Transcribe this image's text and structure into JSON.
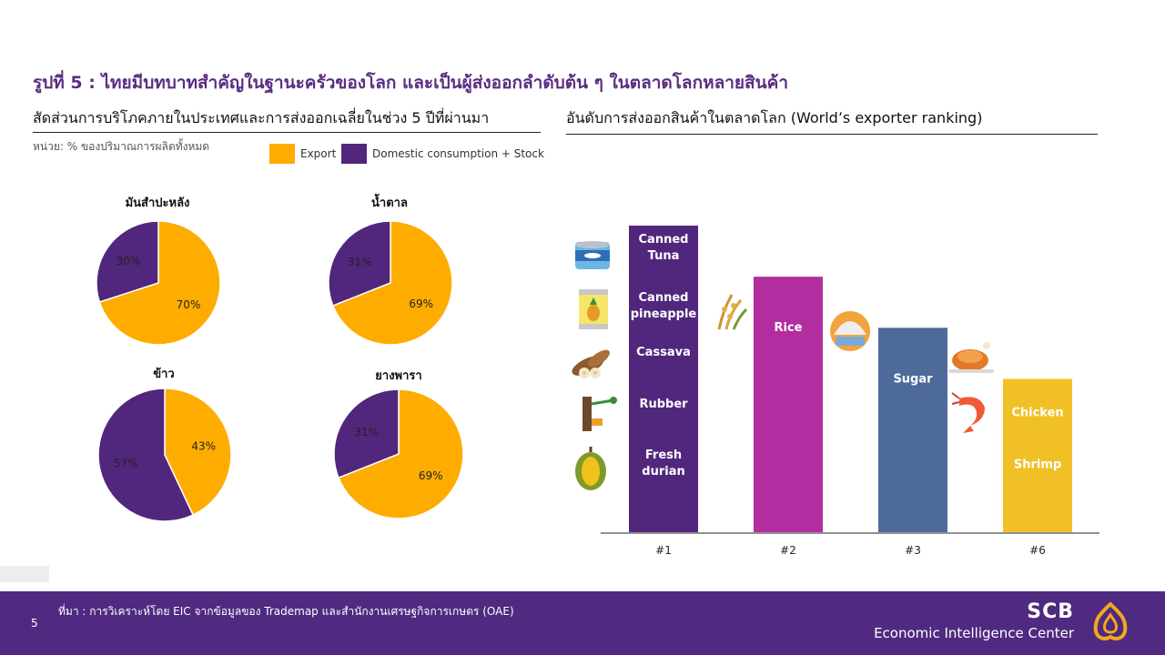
{
  "main_title": "รูปที่ 5 : ไทยมีบทบาทสำคัญในฐานะครัวของโลก และเป็นผู้ส่งออกลำดับต้น ๆ ในตลาดโลกหลายสินค้า",
  "left_section": {
    "title": "สัดส่วนการบริโภคภายในประเทศและการส่งออกเฉลี่ยในช่วง 5 ปีที่ผ่านมา",
    "unit_note": "หน่วย: % ของปริมาณการผลิตทั้งหมด",
    "legend": [
      {
        "label": "Export",
        "color": "#ffac00"
      },
      {
        "label": "Domestic consumption + Stock",
        "color": "#51277d"
      }
    ]
  },
  "right_section": {
    "title": "อันดับการส่งออกสินค้าในตลาดโลก (World’s exporter ranking)"
  },
  "chart_data": [
    {
      "type": "pie",
      "title": "มันสำปะหลัง",
      "slices": [
        {
          "name": "Export",
          "value": 70,
          "label": "70%",
          "color": "#ffac00"
        },
        {
          "name": "Domestic consumption + Stock",
          "value": 30,
          "label": "30%",
          "color": "#51277d"
        }
      ]
    },
    {
      "type": "pie",
      "title": "น้ำตาล",
      "slices": [
        {
          "name": "Export",
          "value": 69,
          "label": "69%",
          "color": "#ffac00"
        },
        {
          "name": "Domestic consumption + Stock",
          "value": 31,
          "label": "31%",
          "color": "#51277d"
        }
      ]
    },
    {
      "type": "pie",
      "title": "ข้าว",
      "slices": [
        {
          "name": "Export",
          "value": 43,
          "label": "43%",
          "color": "#ffac00"
        },
        {
          "name": "Domestic consumption + Stock",
          "value": 57,
          "label": "57%",
          "color": "#51277d"
        }
      ]
    },
    {
      "type": "pie",
      "title": "ยางพารา",
      "slices": [
        {
          "name": "Export",
          "value": 69,
          "label": "69%",
          "color": "#ffac00"
        },
        {
          "name": "Domestic consumption + Stock",
          "value": 31,
          "label": "31%",
          "color": "#51277d"
        }
      ]
    },
    {
      "type": "bar",
      "categories": [
        "#1",
        "#2",
        "#3",
        "#6"
      ],
      "values": [
        6,
        5,
        4,
        3
      ],
      "colors": [
        "#51277d",
        "#b22ea0",
        "#4e6a9b",
        "#f1c027"
      ],
      "bar_items": [
        [
          {
            "text": "Canned Tuna",
            "icon": "canned-tuna-icon"
          },
          {
            "text": "Canned pineapple",
            "icon": "canned-pineapple-icon"
          },
          {
            "text": "Cassava",
            "icon": "cassava-icon"
          },
          {
            "text": "Rubber",
            "icon": "rubber-tree-icon"
          },
          {
            "text": "Fresh durian",
            "icon": "durian-icon"
          }
        ],
        [
          {
            "text": "Rice",
            "icon": "rice-icon"
          }
        ],
        [
          {
            "text": "Sugar",
            "icon": "sugar-icon"
          }
        ],
        [
          {
            "text": "Chicken",
            "icon": "chicken-icon"
          },
          {
            "text": "Shrimp",
            "icon": "shrimp-icon"
          }
        ]
      ],
      "xlabel": "",
      "ylabel": ""
    }
  ],
  "footer": {
    "page_number": "5",
    "source": "ที่มา : การวิเคราะห์โดย EIC จากข้อมูลของ Trademap และสำนักงานเศรษฐกิจการเกษตร (OAE)",
    "brand": "SCB",
    "brand_sub": "Economic Intelligence Center"
  }
}
